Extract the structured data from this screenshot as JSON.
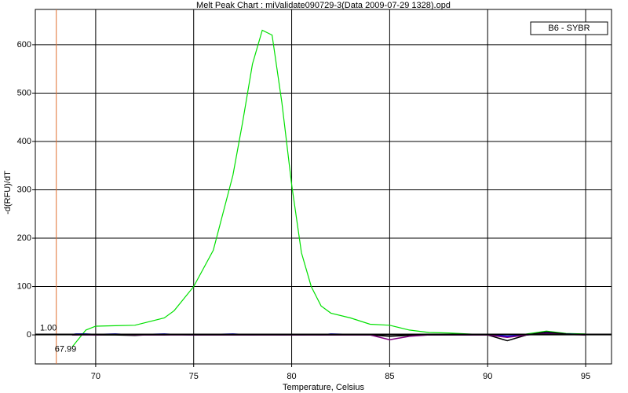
{
  "chart_data": {
    "type": "line",
    "title": "Melt Peak Chart : miValidate090729-3(Data 2009-07-29 1328).opd",
    "x_label": "Temperature, Celsius",
    "y_label": "-d(RFU)/dT",
    "x": [
      68.8,
      69,
      69.5,
      70,
      71,
      72,
      72.5,
      73.5,
      74,
      75,
      76,
      77,
      77.5,
      78,
      78.5,
      79,
      79.5,
      80,
      80.5,
      81,
      81.5,
      82,
      83,
      84,
      85,
      86,
      87,
      88,
      89,
      90,
      91,
      92,
      93,
      94,
      95
    ],
    "series": [
      {
        "name": "B6 - SYBR",
        "color": "#00e000",
        "values": [
          -25,
          -15,
          10,
          18,
          19,
          20,
          25,
          35,
          50,
          100,
          175,
          330,
          440,
          560,
          630,
          620,
          480,
          310,
          170,
          100,
          60,
          45,
          35,
          22,
          20,
          10,
          5,
          4,
          2,
          0,
          -5,
          2,
          8,
          3,
          2
        ]
      },
      {
        "color": "#0000ff",
        "values": [
          1,
          2,
          2,
          1,
          2,
          0,
          1,
          2,
          1,
          0,
          1,
          2,
          1,
          0,
          1,
          1,
          0,
          1,
          0,
          1,
          0,
          2,
          1,
          0,
          1,
          0,
          1,
          1,
          0,
          1,
          -3,
          0,
          4,
          2,
          1
        ]
      },
      {
        "color": "#000000",
        "values": [
          0,
          0,
          1,
          0,
          0,
          -1,
          0,
          0,
          1,
          0,
          0,
          0,
          0,
          0,
          0,
          0,
          0,
          0,
          0,
          0,
          0,
          0,
          0,
          0,
          -3,
          -1,
          0,
          0,
          0,
          0,
          -12,
          0,
          6,
          2,
          0
        ]
      },
      {
        "color": "#800080",
        "values": [
          0,
          0,
          0,
          0,
          1,
          0,
          0,
          0,
          0,
          0,
          0,
          0,
          0,
          0,
          0,
          0,
          0,
          0,
          0,
          0,
          0,
          0,
          0,
          0,
          -10,
          -3,
          0,
          0,
          0,
          0,
          -5,
          0,
          3,
          1,
          0
        ]
      }
    ],
    "xlim": [
      66.92,
      96.32
    ],
    "ylim": [
      -60,
      673
    ],
    "xticks": [
      70,
      75,
      80,
      85,
      90,
      95
    ],
    "yticks": [
      0,
      100,
      200,
      300,
      400,
      500,
      600
    ],
    "grid": true,
    "legend": "upper right",
    "threshold": {
      "value": 1,
      "label": "1.00"
    },
    "marker": {
      "value": 67.99,
      "label": "67.99"
    }
  }
}
